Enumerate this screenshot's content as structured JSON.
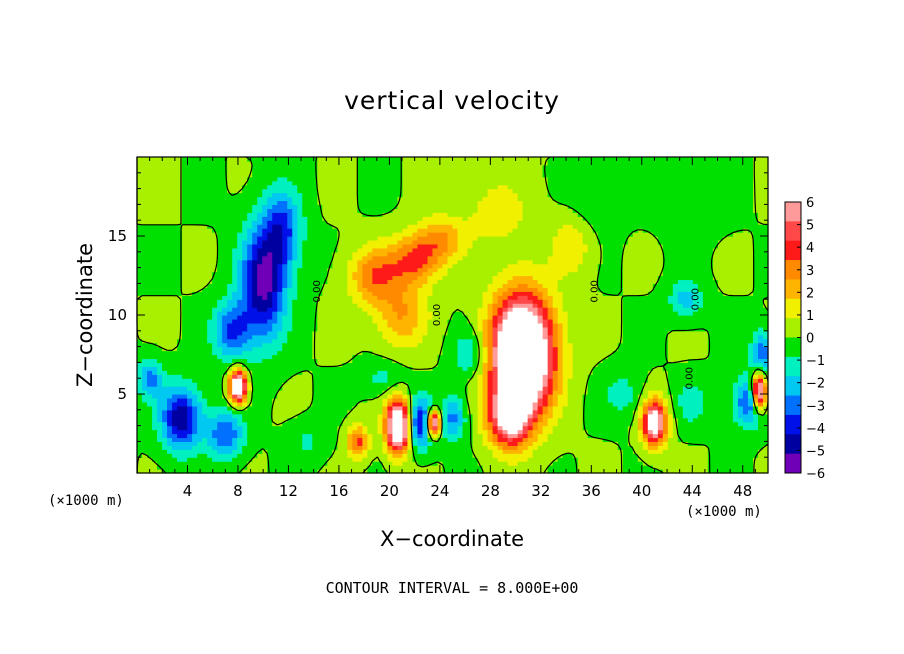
{
  "chart_data": {
    "type": "heatmap",
    "title": "vertical velocity",
    "xlabel": "X−coordinate",
    "ylabel": "Z−coordinate",
    "x_unit": "(×1000 m)",
    "z_unit": "(×1000 m)",
    "xlim": [
      0,
      50
    ],
    "zlim": [
      0,
      20
    ],
    "x_ticks": [
      4,
      8,
      12,
      16,
      20,
      24,
      28,
      32,
      36,
      40,
      44,
      48
    ],
    "z_ticks": [
      5,
      10,
      15
    ],
    "colorbar": {
      "ticks": [
        6,
        5,
        4,
        3,
        2,
        1,
        0,
        -1,
        -2,
        -3,
        -4,
        -5,
        -6
      ],
      "tick_labels": [
        "6",
        "5",
        "4",
        "3",
        "2",
        "1",
        "0",
        "−1",
        "−2",
        "−3",
        "−4",
        "−5",
        "−6"
      ],
      "colors": [
        "#ff9a9a",
        "#ff4848",
        "#ff1a1a",
        "#ff8a00",
        "#ffb400",
        "#f0f000",
        "#a8f000",
        "#00e000",
        "#00f0c0",
        "#00c8f0",
        "#0070ff",
        "#0010e8",
        "#0000a0",
        "#7000b8"
      ],
      "over_color": "#ffffff",
      "range": [
        -6,
        6
      ]
    },
    "contour_labels": [
      "0.00"
    ],
    "contour_interval_text": "CONTOUR INTERVAL = 8.000E+00",
    "features": [
      {
        "type": "updraft",
        "x": 30.5,
        "z": 7.5,
        "sx": 2.4,
        "sz": 3.6,
        "amp": 12
      },
      {
        "type": "updraft",
        "x": 29.5,
        "z": 3.5,
        "sx": 1.6,
        "sz": 1.8,
        "amp": 6
      },
      {
        "type": "updraft",
        "x": 20.7,
        "z": 3.0,
        "sx": 0.9,
        "sz": 1.6,
        "amp": 10
      },
      {
        "type": "updraft",
        "x": 41.0,
        "z": 3.2,
        "sx": 0.9,
        "sz": 1.4,
        "amp": 8
      },
      {
        "type": "updraft",
        "x": 8.0,
        "z": 5.5,
        "sx": 0.6,
        "sz": 1.0,
        "amp": 10
      },
      {
        "type": "updraft",
        "x": 49.3,
        "z": 5.2,
        "sx": 0.5,
        "sz": 1.2,
        "amp": 10
      },
      {
        "type": "updraft",
        "x": 23.5,
        "z": 3.2,
        "sx": 0.5,
        "sz": 0.8,
        "amp": 10
      },
      {
        "type": "updraft",
        "x": 17.5,
        "z": 2.0,
        "sx": 0.8,
        "sz": 1.0,
        "amp": 4
      },
      {
        "type": "updraft",
        "x": 18.8,
        "z": 12.5,
        "sx": 2.0,
        "sz": 1.8,
        "amp": 3.2
      },
      {
        "type": "updraft",
        "x": 22.0,
        "z": 13.5,
        "sx": 2.0,
        "sz": 1.6,
        "amp": 3.5
      },
      {
        "type": "updraft",
        "x": 24.0,
        "z": 14.8,
        "sx": 1.8,
        "sz": 1.4,
        "amp": 2.5
      },
      {
        "type": "updraft",
        "x": 21.0,
        "z": 10.0,
        "sx": 2.0,
        "sz": 2.0,
        "amp": 2.5
      },
      {
        "type": "updraft",
        "x": 34.5,
        "z": 14.5,
        "sx": 1.6,
        "sz": 2.0,
        "amp": 1.6
      },
      {
        "type": "updraft",
        "x": 28.5,
        "z": 16.5,
        "sx": 3.0,
        "sz": 2.5,
        "amp": 1.2
      },
      {
        "type": "downdraft",
        "x": 10.0,
        "z": 12.0,
        "sx": 1.8,
        "sz": 3.5,
        "amp": -5.5
      },
      {
        "type": "downdraft",
        "x": 11.5,
        "z": 15.5,
        "sx": 1.5,
        "sz": 2.5,
        "amp": -3.5
      },
      {
        "type": "downdraft",
        "x": 7.5,
        "z": 9.0,
        "sx": 1.5,
        "sz": 1.8,
        "amp": -3.5
      },
      {
        "type": "downdraft",
        "x": 3.5,
        "z": 3.5,
        "sx": 1.6,
        "sz": 2.0,
        "amp": -5
      },
      {
        "type": "downdraft",
        "x": 1.0,
        "z": 6.0,
        "sx": 1.0,
        "sz": 1.2,
        "amp": -3
      },
      {
        "type": "downdraft",
        "x": 7.0,
        "z": 2.5,
        "sx": 1.4,
        "sz": 1.5,
        "amp": -3.5
      },
      {
        "type": "downdraft",
        "x": 22.5,
        "z": 3.2,
        "sx": 1.0,
        "sz": 1.5,
        "amp": -5
      },
      {
        "type": "downdraft",
        "x": 25.0,
        "z": 3.5,
        "sx": 1.0,
        "sz": 1.4,
        "amp": -3
      },
      {
        "type": "downdraft",
        "x": 26.5,
        "z": 7.5,
        "sx": 1.4,
        "sz": 1.5,
        "amp": -2
      },
      {
        "type": "downdraft",
        "x": 48.5,
        "z": 4.5,
        "sx": 1.2,
        "sz": 1.5,
        "amp": -4
      },
      {
        "type": "downdraft",
        "x": 43.5,
        "z": 11.0,
        "sx": 1.3,
        "sz": 1.2,
        "amp": -2.2
      },
      {
        "type": "downdraft",
        "x": 49.5,
        "z": 7.5,
        "sx": 0.8,
        "sz": 1.5,
        "amp": -3.5
      },
      {
        "type": "downdraft",
        "x": 19.5,
        "z": 6.0,
        "sx": 1.6,
        "sz": 1.0,
        "amp": -1.2
      },
      {
        "type": "downdraft",
        "x": 38.5,
        "z": 5.0,
        "sx": 1.5,
        "sz": 1.5,
        "amp": -1.3
      },
      {
        "type": "downdraft",
        "x": 44.0,
        "z": 4.5,
        "sx": 1.2,
        "sz": 1.4,
        "amp": -1.5
      },
      {
        "type": "downdraft",
        "x": 13.5,
        "z": 2.0,
        "sx": 1.5,
        "sz": 1.2,
        "amp": -1.0
      },
      {
        "type": "downdraft",
        "x": 36.0,
        "z": 17.0,
        "sx": 2.0,
        "sz": 2.0,
        "amp": -0.8
      },
      {
        "type": "downdraft",
        "x": 44.0,
        "z": 17.0,
        "sx": 2.5,
        "sz": 2.0,
        "amp": -0.6
      }
    ]
  }
}
